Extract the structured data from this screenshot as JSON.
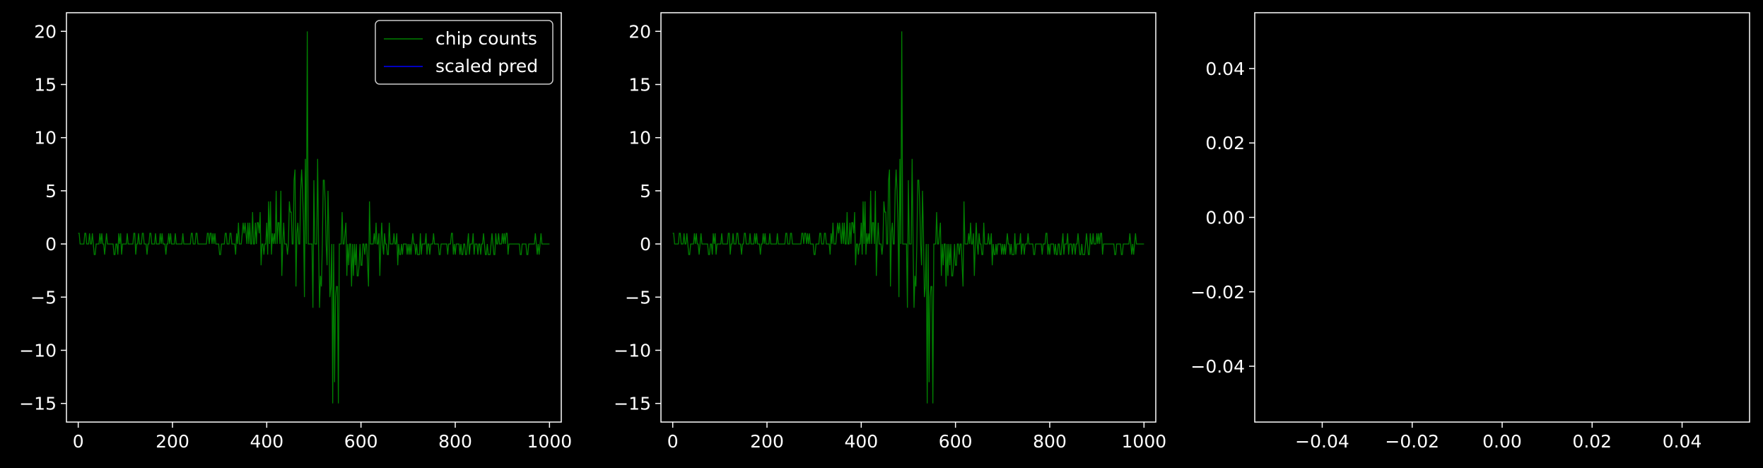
{
  "figure": {
    "background": "#000000",
    "foreground": "#ffffff"
  },
  "chart_data": [
    {
      "type": "line",
      "title": "",
      "xlabel": "",
      "ylabel": "",
      "xlim": [
        -25,
        1025
      ],
      "ylim": [
        -16.75,
        21.75
      ],
      "xticks": [
        0,
        200,
        400,
        600,
        800,
        1000
      ],
      "yticks": [
        -15,
        -10,
        -5,
        0,
        5,
        10,
        15,
        20
      ],
      "xtick_labels": [
        "0",
        "200",
        "400",
        "600",
        "800",
        "1000"
      ],
      "ytick_labels": [
        "−15",
        "−10",
        "−5",
        "0",
        "5",
        "10",
        "15",
        "20"
      ],
      "grid": false,
      "legend": {
        "placement": "top-right",
        "entries": [
          "chip counts",
          "scaled pred"
        ]
      },
      "series": [
        {
          "name": "chip counts",
          "color": "#008000",
          "x_range": [
            0,
            1000
          ],
          "step": 2,
          "peak": {
            "x": 485,
            "y": 20
          },
          "trough": {
            "x": 540,
            "y": -15
          },
          "values_shape": "symmetric spiky counts centred near x≈500, mostly within ±2 at the edges"
        },
        {
          "name": "scaled pred",
          "color": "#0000ff",
          "values": []
        }
      ]
    },
    {
      "type": "line",
      "title": "",
      "xlabel": "",
      "ylabel": "",
      "xlim": [
        -25,
        1025
      ],
      "ylim": [
        -16.75,
        21.75
      ],
      "xticks": [
        0,
        200,
        400,
        600,
        800,
        1000
      ],
      "yticks": [
        -15,
        -10,
        -5,
        0,
        5,
        10,
        15,
        20
      ],
      "xtick_labels": [
        "0",
        "200",
        "400",
        "600",
        "800",
        "1000"
      ],
      "ytick_labels": [
        "−15",
        "−10",
        "−5",
        "0",
        "5",
        "10",
        "15",
        "20"
      ],
      "grid": false,
      "series": [
        {
          "color": "#008000",
          "x_range": [
            0,
            1000
          ],
          "step": 2,
          "peak": {
            "x": 485,
            "y": 20
          },
          "trough": {
            "x": 540,
            "y": -15
          }
        }
      ]
    },
    {
      "type": "line",
      "title": "",
      "xlabel": "",
      "ylabel": "",
      "xlim": [
        -0.055,
        0.055
      ],
      "ylim": [
        -0.055,
        0.055
      ],
      "xticks": [
        -0.04,
        -0.02,
        0.0,
        0.02,
        0.04
      ],
      "yticks": [
        -0.04,
        -0.02,
        0.0,
        0.02,
        0.04
      ],
      "xtick_labels": [
        "−0.04",
        "−0.02",
        "0.00",
        "0.02",
        "0.04"
      ],
      "ytick_labels": [
        "−0.04",
        "−0.02",
        "0.00",
        "0.02",
        "0.04"
      ],
      "grid": false,
      "series": []
    }
  ]
}
